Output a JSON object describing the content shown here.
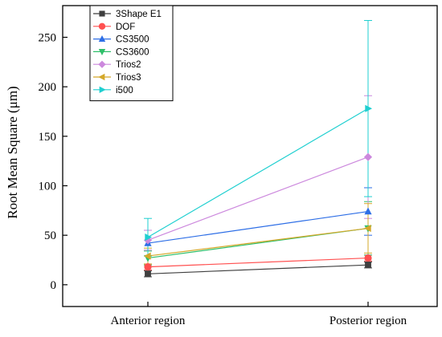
{
  "chart_data": {
    "type": "line",
    "title": "",
    "xlabel": "",
    "ylabel": "Root Mean Square (μm)",
    "categories": [
      "Anterior region",
      "Posterior region"
    ],
    "ylim": [
      -22,
      282
    ],
    "yticks": [
      0,
      50,
      100,
      150,
      200,
      250
    ],
    "grid": false,
    "legend_position": "top-left",
    "series": [
      {
        "name": "3Shape E1",
        "color": "#3f3f3f",
        "marker": "square",
        "values": [
          11,
          20
        ],
        "errors": [
          3,
          3
        ]
      },
      {
        "name": "DOF",
        "color": "#ff5050",
        "marker": "circle",
        "values": [
          18,
          27
        ],
        "errors": [
          3,
          3
        ]
      },
      {
        "name": "CS3500",
        "color": "#2d6ee6",
        "marker": "triangle-up",
        "values": [
          42,
          74
        ],
        "errors": [
          13,
          24
        ]
      },
      {
        "name": "CS3600",
        "color": "#2fbf6a",
        "marker": "triangle-down",
        "values": [
          27,
          57
        ],
        "errors": [
          7,
          27
        ]
      },
      {
        "name": "Trios2",
        "color": "#cc88dd",
        "marker": "diamond",
        "values": [
          45,
          129
        ],
        "errors": [
          10,
          62
        ]
      },
      {
        "name": "Trios3",
        "color": "#d4a82a",
        "marker": "triangle-left",
        "values": [
          29,
          57
        ],
        "errors": [
          8,
          25
        ]
      },
      {
        "name": "i500",
        "color": "#1fcfd0",
        "marker": "triangle-right",
        "values": [
          48,
          178
        ],
        "errors": [
          19,
          89
        ]
      }
    ]
  }
}
